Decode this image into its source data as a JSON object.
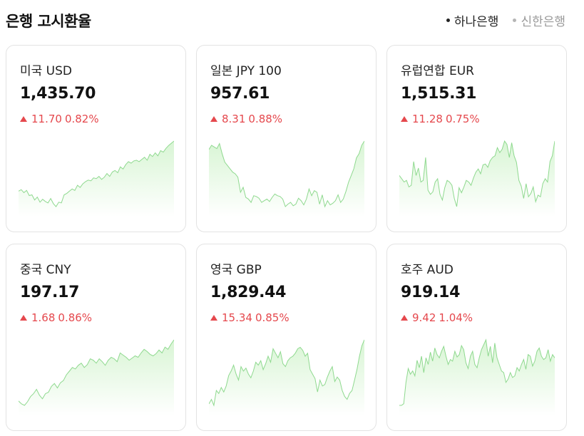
{
  "header": {
    "title": "은행 고시환율",
    "banks": [
      {
        "label": "하나은행",
        "active": true
      },
      {
        "label": "신한은행",
        "active": false
      }
    ]
  },
  "colors": {
    "up": "#e5484d",
    "line": "#8fd98f",
    "fill_top": "#d8f5d4",
    "fill_bottom": "#ffffff"
  },
  "cards": [
    {
      "name": "미국 USD",
      "price": "1,435.70",
      "change": "11.70",
      "percent": "0.82%",
      "direction": "up",
      "trend": [
        30,
        32,
        28,
        31,
        24,
        25,
        18,
        22,
        15,
        19,
        16,
        14,
        20,
        13,
        9,
        15,
        14,
        25,
        27,
        30,
        33,
        31,
        38,
        35,
        40,
        43,
        45,
        44,
        48,
        47,
        50,
        46,
        49,
        54,
        50,
        56,
        58,
        55,
        63,
        60,
        66,
        70,
        68,
        71,
        72,
        70,
        73,
        76,
        72,
        80,
        77,
        82,
        78,
        85,
        83,
        88,
        92,
        95,
        98
      ]
    },
    {
      "name": "일본 JPY 100",
      "price": "957.61",
      "change": "8.31",
      "percent": "0.88%",
      "direction": "up",
      "trend": [
        85,
        90,
        88,
        86,
        92,
        80,
        70,
        66,
        62,
        58,
        56,
        52,
        34,
        40,
        28,
        26,
        22,
        30,
        29,
        27,
        22,
        24,
        26,
        23,
        28,
        32,
        30,
        29,
        26,
        17,
        20,
        22,
        18,
        20,
        27,
        24,
        19,
        26,
        38,
        30,
        36,
        34,
        20,
        31,
        17,
        24,
        19,
        21,
        24,
        31,
        22,
        26,
        35,
        46,
        54,
        62,
        75,
        80,
        90,
        95
      ]
    },
    {
      "name": "유럽연합 EUR",
      "price": "1,515.31",
      "change": "11.28",
      "percent": "0.75%",
      "direction": "up",
      "trend": [
        48,
        44,
        40,
        42,
        34,
        36,
        65,
        48,
        57,
        40,
        42,
        70,
        30,
        25,
        28,
        40,
        44,
        25,
        18,
        33,
        42,
        40,
        36,
        20,
        10,
        33,
        27,
        34,
        42,
        40,
        36,
        45,
        52,
        56,
        50,
        61,
        62,
        58,
        66,
        70,
        72,
        82,
        76,
        80,
        90,
        86,
        70,
        88,
        72,
        64,
        42,
        35,
        20,
        38,
        22,
        26,
        34,
        16,
        24,
        22,
        38,
        44,
        40,
        65,
        72,
        90
      ]
    },
    {
      "name": "중국 CNY",
      "price": "197.17",
      "change": "1.68",
      "percent": "0.86%",
      "direction": "up",
      "trend": [
        14,
        10,
        8,
        13,
        20,
        24,
        30,
        22,
        17,
        24,
        26,
        34,
        38,
        32,
        39,
        42,
        50,
        55,
        60,
        58,
        63,
        66,
        60,
        64,
        72,
        70,
        66,
        72,
        68,
        63,
        70,
        74,
        72,
        68,
        80,
        77,
        74,
        70,
        73,
        76,
        74,
        80,
        85,
        82,
        78,
        76,
        79,
        84,
        80,
        88,
        85,
        92,
        98
      ]
    },
    {
      "name": "영국 GBP",
      "price": "1,829.44",
      "change": "15.34",
      "percent": "0.85%",
      "direction": "up",
      "trend": [
        12,
        18,
        10,
        30,
        26,
        34,
        28,
        36,
        50,
        56,
        64,
        52,
        44,
        62,
        56,
        60,
        52,
        47,
        56,
        68,
        64,
        70,
        58,
        66,
        76,
        68,
        86,
        80,
        74,
        82,
        66,
        62,
        70,
        74,
        76,
        80,
        86,
        88,
        84,
        76,
        80,
        58,
        52,
        46,
        28,
        44,
        36,
        38,
        48,
        56,
        62,
        42,
        48,
        44,
        30,
        22,
        18,
        26,
        30,
        44,
        58,
        76,
        90,
        98
      ]
    },
    {
      "name": "호주 AUD",
      "price": "919.14",
      "change": "9.42",
      "percent": "1.04%",
      "direction": "up",
      "trend": [
        20,
        20,
        22,
        48,
        65,
        58,
        62,
        56,
        75,
        66,
        80,
        60,
        78,
        70,
        85,
        74,
        90,
        82,
        78,
        86,
        92,
        80,
        70,
        76,
        74,
        86,
        79,
        82,
        93,
        88,
        72,
        65,
        80,
        86,
        70,
        66,
        78,
        88,
        94,
        100,
        80,
        92,
        72,
        96,
        78,
        70,
        62,
        60,
        48,
        52,
        60,
        54,
        56,
        66,
        62,
        70,
        76,
        64,
        82,
        80,
        68,
        74,
        86,
        90,
        80,
        76,
        78,
        88,
        74,
        82,
        78
      ]
    }
  ]
}
